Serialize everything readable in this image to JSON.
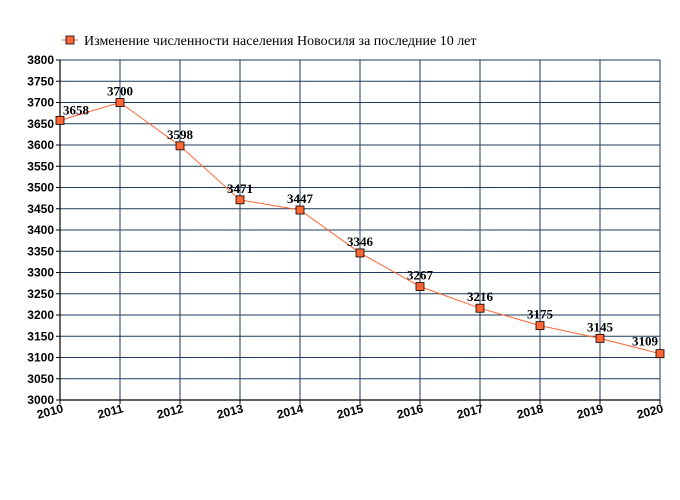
{
  "chart_data": {
    "type": "line",
    "title": "Изменение численности населения Новосиля за последние 10 лет",
    "xlabel": "",
    "ylabel": "",
    "x": [
      "2010",
      "2011",
      "2012",
      "2013",
      "2014",
      "2015",
      "2016",
      "2017",
      "2018",
      "2019",
      "2020"
    ],
    "series": [
      {
        "name": "Изменение численности населения Новосиля за последние 10 лет",
        "values": [
          3658,
          3700,
          3598,
          3471,
          3447,
          3346,
          3267,
          3216,
          3175,
          3145,
          3109
        ],
        "data_labels": [
          "3658",
          "3700",
          "3598",
          "3471",
          "3447",
          "3346",
          "3267",
          "3216",
          "3175",
          "3145",
          "3109"
        ]
      }
    ],
    "ylim": [
      3000,
      3800
    ],
    "yticks": [
      "3000",
      "3050",
      "3100",
      "3150",
      "3200",
      "3250",
      "3300",
      "3350",
      "3400",
      "3450",
      "3500",
      "3550",
      "3600",
      "3650",
      "3700",
      "3750",
      "3800"
    ],
    "grid": true,
    "legend_position": "top-left",
    "colors": {
      "line": "#ff6633",
      "marker_fill": "#ff6633",
      "marker_stroke": "#000000",
      "grid": "#1f3a5c",
      "axis": "#000000"
    }
  }
}
